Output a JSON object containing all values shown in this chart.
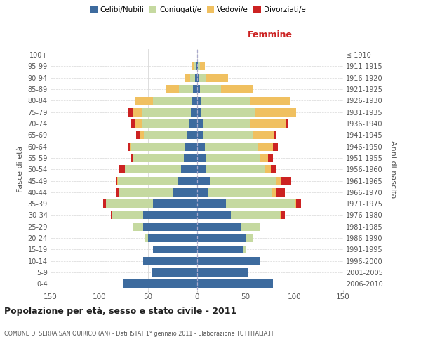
{
  "age_groups": [
    "0-4",
    "5-9",
    "10-14",
    "15-19",
    "20-24",
    "25-29",
    "30-34",
    "35-39",
    "40-44",
    "45-49",
    "50-54",
    "55-59",
    "60-64",
    "65-69",
    "70-74",
    "75-79",
    "80-84",
    "85-89",
    "90-94",
    "95-99",
    "100+"
  ],
  "birth_years": [
    "2006-2010",
    "2001-2005",
    "1996-2000",
    "1991-1995",
    "1986-1990",
    "1981-1985",
    "1976-1980",
    "1971-1975",
    "1966-1970",
    "1961-1965",
    "1956-1960",
    "1951-1955",
    "1946-1950",
    "1941-1945",
    "1936-1940",
    "1931-1935",
    "1926-1930",
    "1921-1925",
    "1916-1920",
    "1911-1915",
    "≤ 1910"
  ],
  "male_celibe": [
    75,
    46,
    55,
    45,
    50,
    55,
    55,
    45,
    25,
    19,
    16,
    13,
    12,
    10,
    8,
    6,
    5,
    4,
    2,
    1,
    0
  ],
  "male_coniugato": [
    0,
    0,
    0,
    0,
    3,
    10,
    32,
    48,
    55,
    62,
    58,
    52,
    55,
    44,
    48,
    50,
    40,
    14,
    5,
    2,
    0
  ],
  "male_vedovo": [
    0,
    0,
    0,
    0,
    0,
    0,
    0,
    0,
    0,
    1,
    0,
    1,
    2,
    4,
    8,
    10,
    18,
    14,
    5,
    2,
    0
  ],
  "male_divorziato": [
    0,
    0,
    0,
    0,
    0,
    1,
    1,
    3,
    3,
    1,
    6,
    2,
    2,
    4,
    4,
    4,
    0,
    0,
    0,
    0,
    0
  ],
  "female_nubile": [
    78,
    53,
    65,
    48,
    50,
    45,
    35,
    30,
    12,
    14,
    10,
    10,
    8,
    7,
    6,
    5,
    4,
    3,
    2,
    1,
    0
  ],
  "female_coniugata": [
    0,
    0,
    0,
    2,
    8,
    20,
    50,
    70,
    65,
    68,
    60,
    55,
    55,
    50,
    48,
    55,
    50,
    22,
    8,
    2,
    0
  ],
  "female_vedova": [
    0,
    0,
    0,
    0,
    0,
    0,
    2,
    2,
    5,
    5,
    6,
    8,
    15,
    22,
    38,
    42,
    42,
    32,
    22,
    5,
    0
  ],
  "female_divorziata": [
    0,
    0,
    0,
    0,
    0,
    0,
    3,
    5,
    8,
    10,
    5,
    5,
    5,
    3,
    2,
    0,
    0,
    0,
    0,
    0,
    0
  ],
  "color_celibe": "#3d6b9e",
  "color_coniugato": "#c5d9a0",
  "color_vedovo": "#f0c060",
  "color_divorziato": "#cc2222",
  "legend_labels": [
    "Celibi/Nubili",
    "Coniugati/e",
    "Vedovi/e",
    "Divorziati/e"
  ],
  "legend_colors": [
    "#3d6b9e",
    "#c5d9a0",
    "#f0c060",
    "#cc2222"
  ],
  "title_main": "Popolazione per età, sesso e stato civile - 2011",
  "title_sub": "COMUNE DI SERRA SAN QUIRICO (AN) - Dati ISTAT 1° gennaio 2011 - Elaborazione TUTTITALIA.IT",
  "label_femmine": "Femmine",
  "ylabel_left": "Fasce di età",
  "ylabel_right": "Anni di nascita",
  "xlim": 150,
  "bg_color": "#ffffff",
  "grid_color": "#d8d8d8",
  "bar_height": 0.72
}
